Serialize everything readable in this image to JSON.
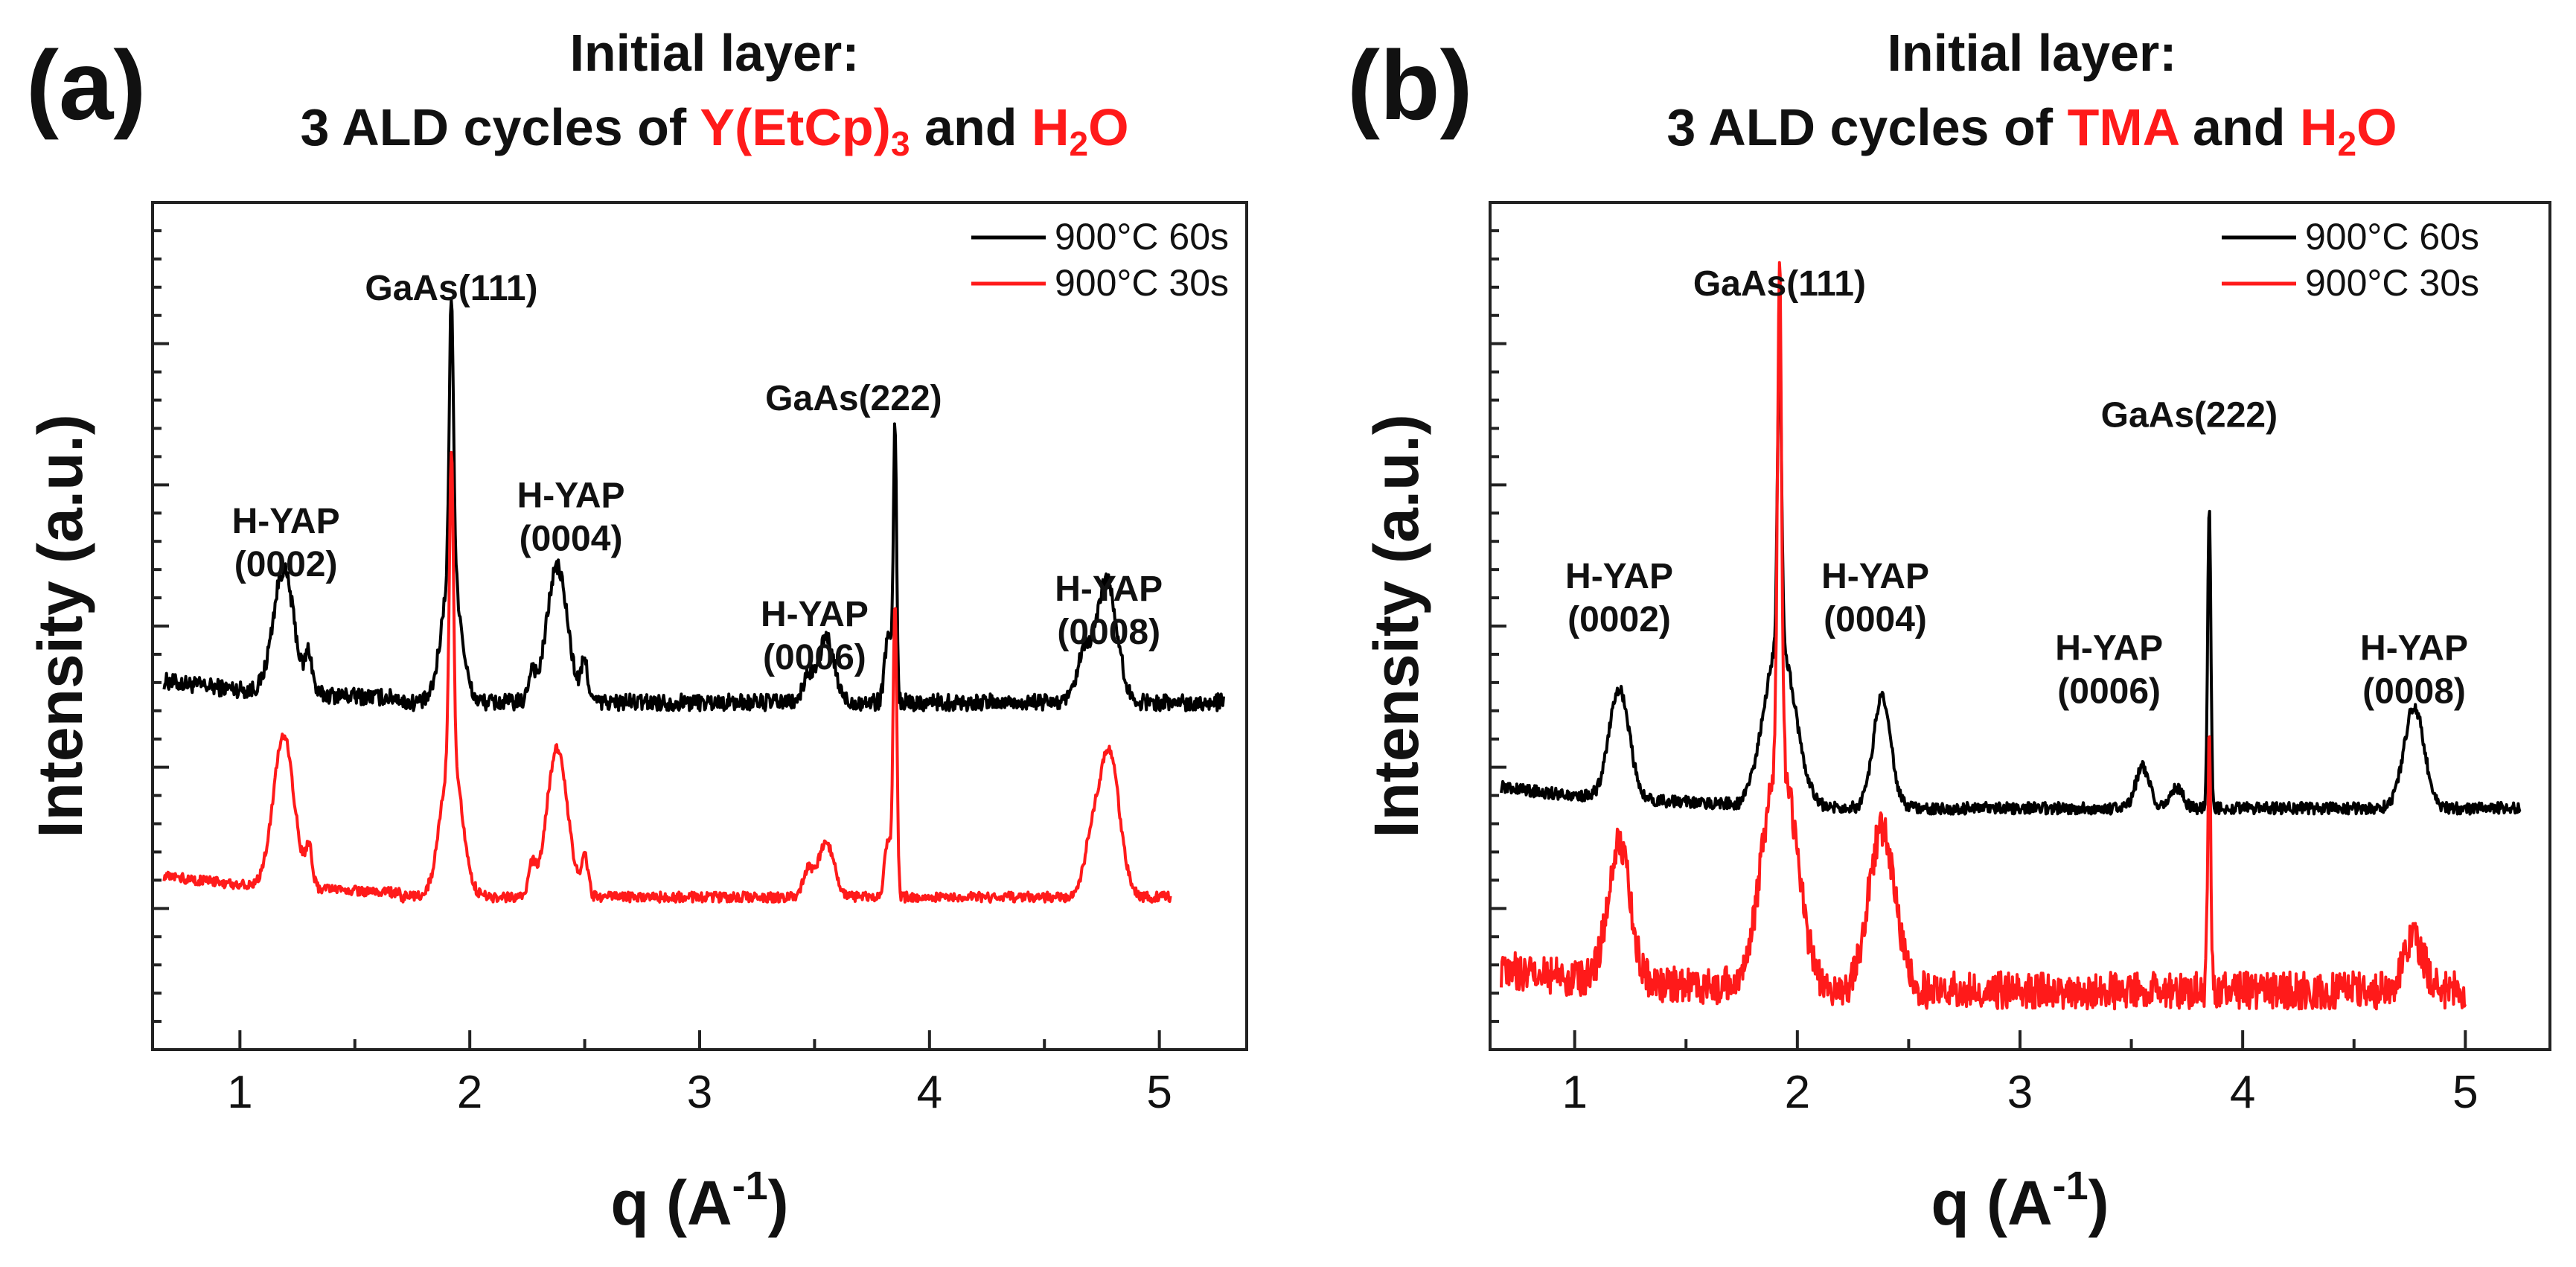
{
  "chart_data": [
    {
      "type": "line",
      "panel_label": "(a)",
      "title_line1": "Initial layer:",
      "title_line2_parts": [
        "3 ALD cycles of ",
        "Y(EtCp)",
        "3",
        " and ",
        "H",
        "2",
        "O"
      ],
      "title_highlight_color": "#ff1a1a",
      "xlabel": "q (A",
      "xlabel_sup": "-1",
      "xlabel_close": ")",
      "ylabel": "Intensity (a.u.)",
      "xlim": [
        0.62,
        5.38
      ],
      "ylim": [
        0,
        10
      ],
      "xticks": [
        1,
        2,
        3,
        4,
        5
      ],
      "xtick_labels": [
        "1",
        "2",
        "3",
        "4",
        "5"
      ],
      "series": [
        {
          "name": "900°C 60s",
          "color": "#000000",
          "offset": 4.1,
          "x_end": 5.28,
          "noise": 0.1,
          "peaks": [
            {
              "x": 1.19,
              "h": 1.45,
              "w": 0.045
            },
            {
              "x": 1.3,
              "h": 0.45,
              "w": 0.015
            },
            {
              "x": 1.92,
              "h": 3.2,
              "w": 0.009
            },
            {
              "x": 1.92,
              "h": 1.6,
              "w": 0.04
            },
            {
              "x": 2.27,
              "h": 0.35,
              "w": 0.015
            },
            {
              "x": 2.38,
              "h": 1.6,
              "w": 0.045
            },
            {
              "x": 2.5,
              "h": 0.45,
              "w": 0.015
            },
            {
              "x": 3.47,
              "h": 0.3,
              "w": 0.02
            },
            {
              "x": 3.55,
              "h": 0.75,
              "w": 0.035
            },
            {
              "x": 3.82,
              "h": 0.8,
              "w": 0.015
            },
            {
              "x": 3.85,
              "h": 3.2,
              "w": 0.007
            },
            {
              "x": 4.67,
              "h": 0.5,
              "w": 0.03
            },
            {
              "x": 4.77,
              "h": 1.45,
              "w": 0.045
            }
          ]
        },
        {
          "name": "900°C 30s",
          "color": "#ff1a1a",
          "offset": 1.8,
          "x_end": 5.05,
          "noise": 0.06,
          "peaks": [
            {
              "x": 1.19,
              "h": 1.8,
              "w": 0.045
            },
            {
              "x": 1.3,
              "h": 0.45,
              "w": 0.015
            },
            {
              "x": 1.92,
              "h": 3.6,
              "w": 0.009
            },
            {
              "x": 1.92,
              "h": 1.7,
              "w": 0.045
            },
            {
              "x": 2.27,
              "h": 0.35,
              "w": 0.015
            },
            {
              "x": 2.38,
              "h": 1.75,
              "w": 0.045
            },
            {
              "x": 2.5,
              "h": 0.45,
              "w": 0.015
            },
            {
              "x": 3.47,
              "h": 0.3,
              "w": 0.02
            },
            {
              "x": 3.55,
              "h": 0.65,
              "w": 0.035
            },
            {
              "x": 3.82,
              "h": 0.7,
              "w": 0.015
            },
            {
              "x": 3.85,
              "h": 3.4,
              "w": 0.008
            },
            {
              "x": 4.7,
              "h": 0.5,
              "w": 0.03
            },
            {
              "x": 4.78,
              "h": 1.75,
              "w": 0.045
            }
          ]
        }
      ],
      "legend": [
        "900°C 60s",
        "900°C 30s"
      ],
      "legend_position": "top-right",
      "annotations": [
        {
          "lines": [
            "H-YAP",
            "(0002)"
          ],
          "x": 1.2,
          "y": 6.1
        },
        {
          "lines": [
            "GaAs(111)"
          ],
          "x": 1.92,
          "y": 8.85
        },
        {
          "lines": [
            "H-YAP",
            "(0004)"
          ],
          "x": 2.44,
          "y": 6.4
        },
        {
          "lines": [
            "GaAs(222)"
          ],
          "x": 3.67,
          "y": 7.55
        },
        {
          "lines": [
            "H-YAP",
            "(0006)"
          ],
          "x": 3.5,
          "y": 5.0
        },
        {
          "lines": [
            "H-YAP",
            "(0008)"
          ],
          "x": 4.78,
          "y": 5.3
        }
      ]
    },
    {
      "type": "line",
      "panel_label": "(b)",
      "title_line1": "Initial layer:",
      "title_line2_parts": [
        "3 ALD cycles of ",
        "TMA",
        "",
        " and ",
        "H",
        "2",
        "O"
      ],
      "title_highlight_color": "#ff1a1a",
      "xlabel": "q (A",
      "xlabel_sup": "-1",
      "xlabel_close": ")",
      "ylabel": "Intensity (a.u.)",
      "xlim": [
        0.62,
        5.38
      ],
      "ylim": [
        0,
        10
      ],
      "xticks": [
        1,
        2,
        3,
        4,
        5
      ],
      "xtick_labels": [
        "1",
        "2",
        "3",
        "4",
        "5"
      ],
      "series": [
        {
          "name": "900°C 60s",
          "color": "#000000",
          "offset": 2.85,
          "x_end": 5.25,
          "noise": 0.07,
          "peaks": [
            {
              "x": 1.2,
              "h": 1.3,
              "w": 0.045
            },
            {
              "x": 1.92,
              "h": 3.5,
              "w": 0.009
            },
            {
              "x": 1.92,
              "h": 1.95,
              "w": 0.07
            },
            {
              "x": 2.38,
              "h": 1.3,
              "w": 0.04
            },
            {
              "x": 3.55,
              "h": 0.5,
              "w": 0.03
            },
            {
              "x": 3.7,
              "h": 0.25,
              "w": 0.03
            },
            {
              "x": 3.85,
              "h": 3.6,
              "w": 0.007
            },
            {
              "x": 4.77,
              "h": 1.2,
              "w": 0.045
            }
          ]
        },
        {
          "name": "900°C 30s",
          "color": "#ff1a1a",
          "offset": 0.7,
          "x_end": 5.0,
          "noise": 0.22,
          "peaks": [
            {
              "x": 1.2,
              "h": 1.6,
              "w": 0.05
            },
            {
              "x": 1.92,
              "h": 5.8,
              "w": 0.009
            },
            {
              "x": 1.92,
              "h": 2.8,
              "w": 0.075
            },
            {
              "x": 2.38,
              "h": 1.9,
              "w": 0.06
            },
            {
              "x": 3.85,
              "h": 3.0,
              "w": 0.007
            },
            {
              "x": 4.77,
              "h": 0.6,
              "w": 0.045
            }
          ]
        }
      ],
      "legend": [
        "900°C 60s",
        "900°C 30s"
      ],
      "legend_position": "top-right",
      "annotations": [
        {
          "lines": [
            "H-YAP",
            "(0002)"
          ],
          "x": 1.2,
          "y": 5.45
        },
        {
          "lines": [
            "GaAs(111)"
          ],
          "x": 1.92,
          "y": 8.9
        },
        {
          "lines": [
            "H-YAP",
            "(0004)"
          ],
          "x": 2.35,
          "y": 5.45
        },
        {
          "lines": [
            "GaAs(222)"
          ],
          "x": 3.76,
          "y": 7.35
        },
        {
          "lines": [
            "H-YAP",
            "(0006)"
          ],
          "x": 3.4,
          "y": 4.6
        },
        {
          "lines": [
            "H-YAP",
            "(0008)"
          ],
          "x": 4.77,
          "y": 4.6
        }
      ]
    }
  ]
}
